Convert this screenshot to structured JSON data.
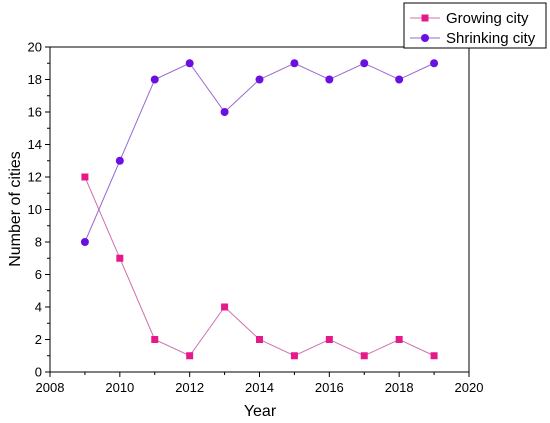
{
  "chart_data": {
    "type": "line",
    "xlabel": "Year",
    "ylabel": "Number of cities",
    "xlim": [
      2008,
      2020
    ],
    "ylim": [
      0,
      20
    ],
    "x_ticks": [
      2008,
      2010,
      2012,
      2014,
      2016,
      2018,
      2020
    ],
    "y_ticks": [
      0,
      2,
      4,
      6,
      8,
      10,
      12,
      14,
      16,
      18,
      20
    ],
    "x": [
      2009,
      2010,
      2011,
      2012,
      2013,
      2014,
      2015,
      2016,
      2017,
      2018,
      2019
    ],
    "series": [
      {
        "name": "Growing city",
        "marker": "square",
        "color": "#e6198a",
        "line_color": "#d070b0",
        "values": [
          12,
          7,
          2,
          1,
          4,
          2,
          1,
          2,
          1,
          2,
          1
        ]
      },
      {
        "name": "Shrinking city",
        "marker": "circle",
        "color": "#6a10e0",
        "line_color": "#9a6ad0",
        "values": [
          8,
          13,
          18,
          19,
          16,
          18,
          19,
          18,
          19,
          18,
          19
        ]
      }
    ],
    "legend_position": "top-right",
    "grid": false
  }
}
